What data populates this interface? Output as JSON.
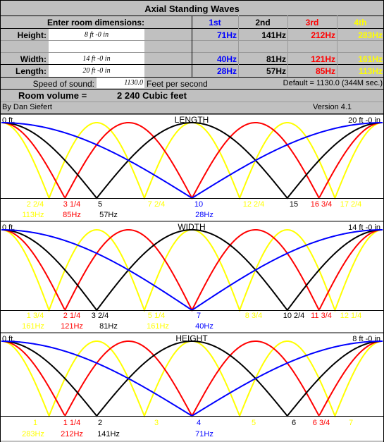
{
  "title": "Axial Standing Waves",
  "inputs_heading": "Enter room dimensions:",
  "col_headers": {
    "first": "1st",
    "second": "2nd",
    "third": "3rd",
    "fourth": "4th"
  },
  "rows": {
    "height": {
      "label": "Height:",
      "value": "8 ft  -0 in",
      "f1": "71Hz",
      "f2": "141Hz",
      "f3": "212Hz",
      "f4": "283Hz"
    },
    "width": {
      "label": "Width:",
      "value": "14 ft  -0 in",
      "f1": "40Hz",
      "f2": "81Hz",
      "f3": "121Hz",
      "f4": "161Hz"
    },
    "length": {
      "label": "Length:",
      "value": "20 ft  -0 in",
      "f1": "28Hz",
      "f2": "57Hz",
      "f3": "85Hz",
      "f4": "113Hz"
    }
  },
  "speed": {
    "label": "Speed of sound:",
    "value": "1130.0",
    "unit": "Feet per second",
    "default": "Default = 1130.0 (344M sec.)"
  },
  "volume": {
    "label": "Room volume =",
    "value": "2 240 Cubic feet"
  },
  "author": "By Dan Siefert",
  "version": "Version 4.1",
  "colors": {
    "first": "#0000ff",
    "second": "#000000",
    "third": "#ff0000",
    "fourth": "#ffff00",
    "bg": "#c0c0c0"
  },
  "graphs": [
    {
      "name": "length",
      "title": "LENGTH",
      "start": "0 ft.",
      "end": "20 ft -0 in",
      "positions": [
        {
          "text": "2 2/4",
          "color": "#ffff00"
        },
        {
          "text": "3 1/4",
          "color": "#ff0000"
        },
        {
          "text": "5",
          "color": "#000000"
        },
        {
          "text": "7 2/4",
          "color": "#ffff00"
        },
        {
          "text": "10",
          "color": "#0000ff"
        },
        {
          "text": "12 2/4",
          "color": "#ffff00"
        },
        {
          "text": "15",
          "color": "#000000"
        },
        {
          "text": "16 3/4",
          "color": "#ff0000"
        },
        {
          "text": "17 2/4",
          "color": "#ffff00"
        }
      ],
      "freqs": [
        {
          "text": "113Hz",
          "color": "#ffff00"
        },
        {
          "text": "85Hz",
          "color": "#ff0000"
        },
        {
          "text": "57Hz",
          "color": "#000000"
        },
        {
          "text": "28Hz",
          "color": "#0000ff"
        }
      ]
    },
    {
      "name": "width",
      "title": "WIDTH",
      "start": "0 ft.",
      "end": "14 ft -0 in",
      "positions": [
        {
          "text": "1 3/4",
          "color": "#ffff00"
        },
        {
          "text": "2 1/4",
          "color": "#ff0000"
        },
        {
          "text": "3 2/4",
          "color": "#000000"
        },
        {
          "text": "5 1/4",
          "color": "#ffff00"
        },
        {
          "text": "7",
          "color": "#0000ff"
        },
        {
          "text": "8 3/4",
          "color": "#ffff00"
        },
        {
          "text": "10 2/4",
          "color": "#000000"
        },
        {
          "text": "11 3/4",
          "color": "#ff0000"
        },
        {
          "text": "12 1/4",
          "color": "#ffff00"
        }
      ],
      "freqs": [
        {
          "text": "161Hz",
          "color": "#ffff00"
        },
        {
          "text": "121Hz",
          "color": "#ff0000"
        },
        {
          "text": "81Hz",
          "color": "#000000"
        },
        {
          "text": "161Hz",
          "color": "#ffff00"
        },
        {
          "text": "40Hz",
          "color": "#0000ff"
        }
      ]
    },
    {
      "name": "height",
      "title": "HEIGHT",
      "start": "0 ft.",
      "end": "8 ft -0 in",
      "positions": [
        {
          "text": "1",
          "color": "#ffff00"
        },
        {
          "text": "1 1/4",
          "color": "#ff0000"
        },
        {
          "text": "2",
          "color": "#000000"
        },
        {
          "text": "3",
          "color": "#ffff00"
        },
        {
          "text": "4",
          "color": "#0000ff"
        },
        {
          "text": "5",
          "color": "#ffff00"
        },
        {
          "text": "6",
          "color": "#000000"
        },
        {
          "text": "6 3/4",
          "color": "#ff0000"
        },
        {
          "text": "7",
          "color": "#ffff00"
        }
      ],
      "freqs": [
        {
          "text": "283Hz",
          "color": "#ffff00"
        },
        {
          "text": "212Hz",
          "color": "#ff0000"
        },
        {
          "text": "141Hz",
          "color": "#000000"
        },
        {
          "text": "71Hz",
          "color": "#0000ff"
        }
      ]
    }
  ]
}
